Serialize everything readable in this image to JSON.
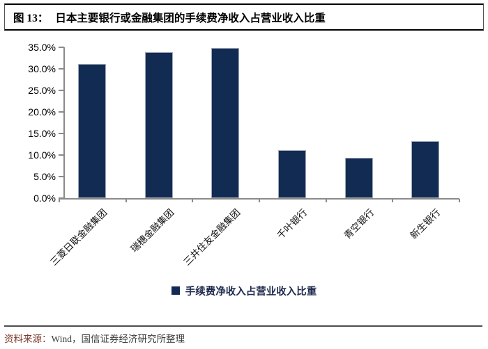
{
  "header": {
    "fig_label": "图 13：",
    "title": "日本主要银行或金融集团的手续费净收入占营业收入比重"
  },
  "chart_data": {
    "type": "bar",
    "title": "日本主要银行或金融集团的手续费净收入占营业收入比重",
    "categories": [
      "三菱日联金融集团",
      "瑞穗金融集团",
      "三井住友金融集团",
      "千叶银行",
      "青空银行",
      "新生银行"
    ],
    "values": [
      31.2,
      33.8,
      34.8,
      11.2,
      9.3,
      13.3
    ],
    "unit": "%",
    "xlabel": "",
    "ylabel": "",
    "ylim": [
      0,
      35
    ],
    "ytick_step": 5,
    "ytick_labels": [
      "0.0%",
      "5.0%",
      "10.0%",
      "15.0%",
      "20.0%",
      "25.0%",
      "30.0%",
      "35.0%"
    ],
    "grid": false,
    "legend_position": "bottom",
    "legend": [
      "手续费净收入占营业收入比重"
    ]
  },
  "legend": {
    "label": "手续费净收入占营业收入比重"
  },
  "footer": {
    "prefix": "资料来源：",
    "text": "Wind，国信证券经济研究所整理"
  },
  "colors": {
    "bar": "#122b52",
    "bar_outline": "#a2aab9",
    "axis": "#8a8a8a",
    "maroon": "#7b382b",
    "title_text": "#000000"
  }
}
